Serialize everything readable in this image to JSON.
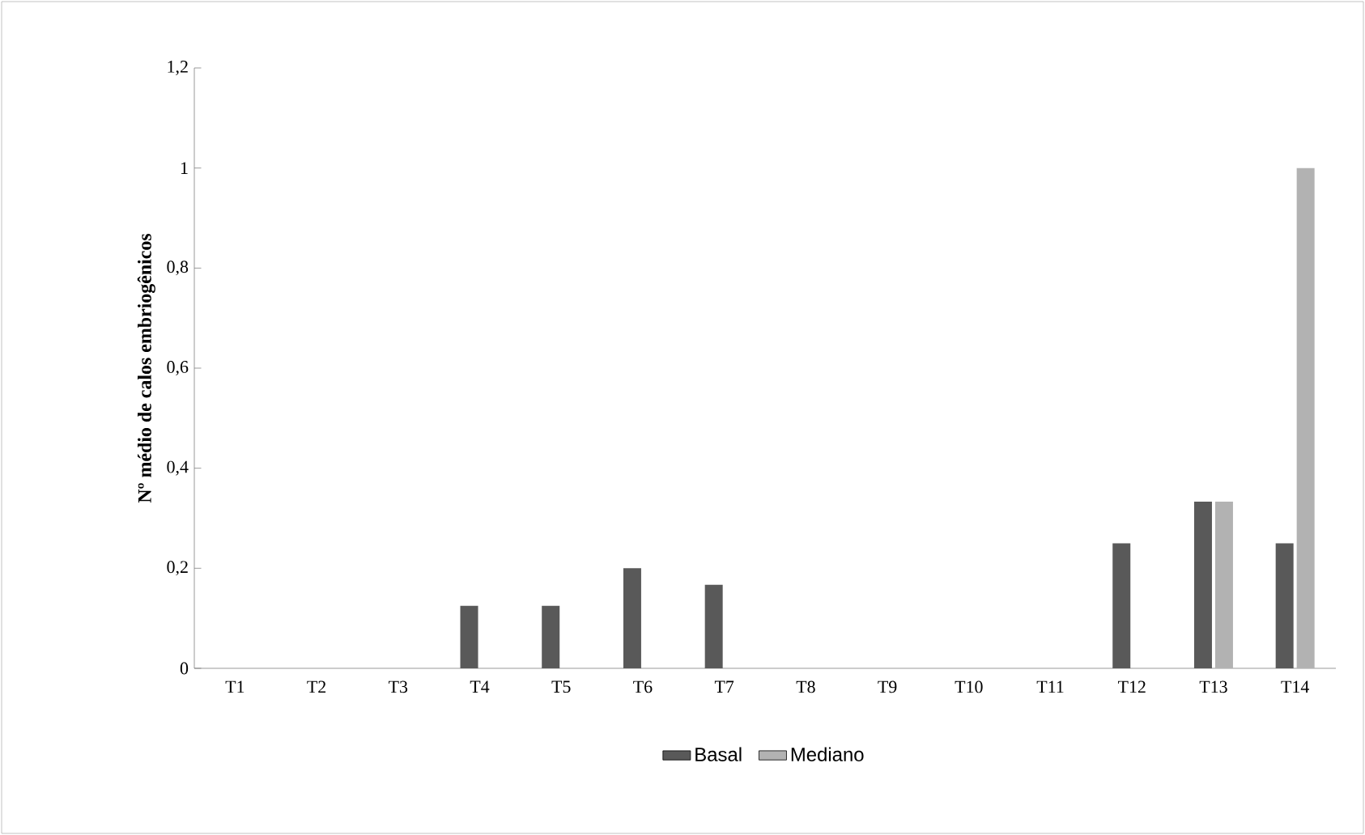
{
  "chart_data": {
    "type": "bar",
    "ylabel": "Nº médio de calos embriogênicos",
    "categories": [
      "T1",
      "T2",
      "T3",
      "T4",
      "T5",
      "T6",
      "T7",
      "T8",
      "T9",
      "T10",
      "T11",
      "T12",
      "T13",
      "T14"
    ],
    "series": [
      {
        "name": "Basal",
        "color": "#595959",
        "values": [
          0,
          0,
          0,
          0.125,
          0.125,
          0.2,
          0.167,
          0,
          0,
          0,
          0,
          0.25,
          0.333,
          0.25
        ]
      },
      {
        "name": "Mediano",
        "color": "#b2b2b2",
        "values": [
          0,
          0,
          0,
          0,
          0,
          0,
          0,
          0,
          0,
          0,
          0,
          0,
          0.333,
          1.0
        ]
      }
    ],
    "ylim": [
      0,
      1.2
    ],
    "yticks": [
      0,
      {
        "value": 0.2,
        "label": "0,2"
      },
      {
        "value": 0.4,
        "label": "0,4"
      },
      {
        "value": 0.6,
        "label": "0,6"
      },
      {
        "value": 0.8,
        "label": "0,8"
      },
      1,
      {
        "value": 1.2,
        "label": "1,2"
      }
    ],
    "grid": false,
    "legend": "bottom"
  }
}
